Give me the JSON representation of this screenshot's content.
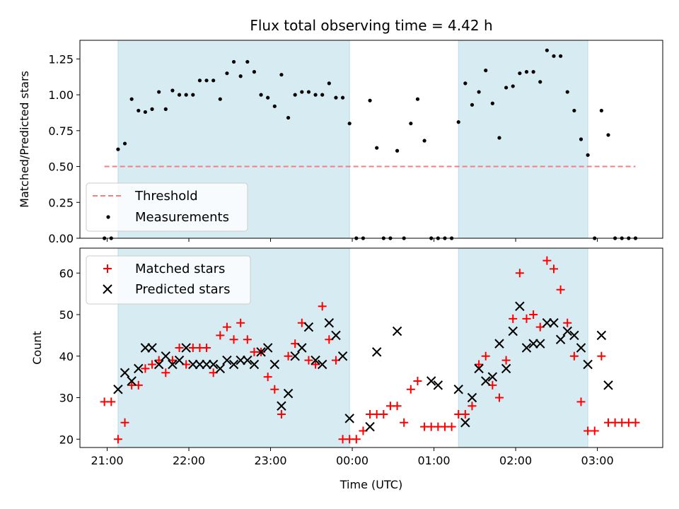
{
  "chart_data": [
    {
      "type": "scatter",
      "title": "Flux total observing time = 4.42 h",
      "ylabel": "Matched/Predicted stars",
      "xlim": [
        "20:40",
        "03:48"
      ],
      "ylim": [
        0,
        1.38
      ],
      "yticks": [
        "0.00",
        "0.25",
        "0.50",
        "0.75",
        "1.00",
        "1.25"
      ],
      "legend_position": "lower-left",
      "shaded_spans": [
        [
          "21:08",
          "23:58"
        ],
        [
          "01:18",
          "02:53"
        ]
      ],
      "shade_color": "#add8e6",
      "threshold": {
        "name": "Threshold",
        "value": 0.5,
        "x_range": [
          "20:58",
          "03:28"
        ],
        "color": "#f08080"
      },
      "series": [
        {
          "name": "Measurements",
          "color": "#000000",
          "x": [
            "20:58",
            "21:03",
            "21:08",
            "21:13",
            "21:18",
            "21:23",
            "21:28",
            "21:33",
            "21:38",
            "21:43",
            "21:48",
            "21:53",
            "21:58",
            "22:03",
            "22:08",
            "22:13",
            "22:18",
            "22:23",
            "22:28",
            "22:33",
            "22:38",
            "22:43",
            "22:48",
            "22:53",
            "22:58",
            "23:03",
            "23:08",
            "23:13",
            "23:18",
            "23:23",
            "23:28",
            "23:33",
            "23:38",
            "23:43",
            "23:48",
            "23:53",
            "23:58",
            "00:03",
            "00:08",
            "00:13",
            "00:18",
            "00:23",
            "00:28",
            "00:33",
            "00:38",
            "00:43",
            "00:48",
            "00:53",
            "00:58",
            "01:03",
            "01:08",
            "01:13",
            "01:18",
            "01:23",
            "01:28",
            "01:33",
            "01:38",
            "01:43",
            "01:48",
            "01:53",
            "01:58",
            "02:03",
            "02:08",
            "02:13",
            "02:18",
            "02:23",
            "02:28",
            "02:33",
            "02:38",
            "02:43",
            "02:48",
            "02:53",
            "02:58",
            "03:03",
            "03:08",
            "03:13",
            "03:18",
            "03:23",
            "03:28"
          ],
          "y": [
            0,
            0,
            0.62,
            0.66,
            0.97,
            0.89,
            0.88,
            0.9,
            1.02,
            0.9,
            1.03,
            1.0,
            1.0,
            1.0,
            1.1,
            1.1,
            1.1,
            0.97,
            1.15,
            1.23,
            1.13,
            1.23,
            1.16,
            1.0,
            0.98,
            0.92,
            1.14,
            0.84,
            1.0,
            1.02,
            1.02,
            1.0,
            1.0,
            1.08,
            0.98,
            0.98,
            0.8,
            0,
            0,
            0.96,
            0.63,
            0,
            0,
            0.61,
            0,
            0.8,
            0.97,
            0.68,
            0,
            0,
            0,
            0,
            0.81,
            1.08,
            0.93,
            1.02,
            1.17,
            0.94,
            0.7,
            1.05,
            1.06,
            1.15,
            1.16,
            1.16,
            1.09,
            1.31,
            1.27,
            1.27,
            1.02,
            0.89,
            0.69,
            0.58,
            0,
            0.89,
            0.72,
            0,
            0,
            0,
            0
          ]
        }
      ]
    },
    {
      "type": "scatter",
      "xlabel": "Time (UTC)",
      "ylabel": "Count",
      "xlim": [
        "20:40",
        "03:48"
      ],
      "ylim": [
        18,
        66
      ],
      "yticks": [
        "20",
        "30",
        "40",
        "50",
        "60"
      ],
      "xticks": [
        "21:00",
        "22:00",
        "23:00",
        "00:00",
        "01:00",
        "02:00",
        "03:00"
      ],
      "legend_position": "upper-left",
      "shaded_spans": [
        [
          "21:08",
          "23:58"
        ],
        [
          "01:18",
          "02:53"
        ]
      ],
      "series": [
        {
          "name": "Matched stars",
          "color": "#ff0000",
          "marker": "plus",
          "x": [
            "20:58",
            "21:03",
            "21:08",
            "21:13",
            "21:18",
            "21:23",
            "21:28",
            "21:33",
            "21:38",
            "21:43",
            "21:48",
            "21:53",
            "21:58",
            "22:03",
            "22:08",
            "22:13",
            "22:18",
            "22:23",
            "22:28",
            "22:33",
            "22:38",
            "22:43",
            "22:48",
            "22:53",
            "22:58",
            "23:03",
            "23:08",
            "23:13",
            "23:18",
            "23:23",
            "23:28",
            "23:33",
            "23:38",
            "23:43",
            "23:48",
            "23:53",
            "23:58",
            "00:03",
            "00:08",
            "00:13",
            "00:18",
            "00:23",
            "00:28",
            "00:33",
            "00:38",
            "00:43",
            "00:48",
            "00:53",
            "00:58",
            "01:03",
            "01:08",
            "01:13",
            "01:18",
            "01:23",
            "01:28",
            "01:33",
            "01:38",
            "01:43",
            "01:48",
            "01:53",
            "01:58",
            "02:03",
            "02:08",
            "02:13",
            "02:18",
            "02:23",
            "02:28",
            "02:33",
            "02:38",
            "02:43",
            "02:48",
            "02:53",
            "02:58",
            "03:03",
            "03:08",
            "03:13",
            "03:18",
            "03:23",
            "03:28"
          ],
          "y": [
            29,
            29,
            20,
            24,
            33,
            33,
            37,
            38,
            39,
            36,
            39,
            42,
            38,
            42,
            42,
            42,
            36,
            45,
            47,
            44,
            48,
            44,
            41,
            41,
            35,
            32,
            26,
            40,
            43,
            48,
            39,
            38,
            52,
            44,
            39,
            20,
            20,
            20,
            22,
            26,
            26,
            26,
            28,
            28,
            24,
            32,
            34,
            23,
            23,
            23,
            23,
            23,
            26,
            26,
            28,
            38,
            40,
            33,
            30,
            39,
            49,
            60,
            49,
            50,
            47,
            63,
            61,
            56,
            48,
            40,
            29,
            22,
            22,
            40,
            24,
            24,
            24,
            24,
            24
          ]
        },
        {
          "name": "Predicted stars",
          "color": "#000000",
          "marker": "x",
          "x": [
            "21:08",
            "21:13",
            "21:18",
            "21:23",
            "21:28",
            "21:33",
            "21:38",
            "21:43",
            "21:48",
            "21:53",
            "21:58",
            "22:03",
            "22:08",
            "22:13",
            "22:18",
            "22:23",
            "22:28",
            "22:33",
            "22:38",
            "22:43",
            "22:48",
            "22:53",
            "22:58",
            "23:03",
            "23:08",
            "23:13",
            "23:18",
            "23:23",
            "23:28",
            "23:33",
            "23:38",
            "23:43",
            "23:48",
            "23:53",
            "23:58",
            "00:13",
            "00:18",
            "00:33",
            "00:58",
            "01:03",
            "01:18",
            "01:23",
            "01:28",
            "01:33",
            "01:38",
            "01:43",
            "01:48",
            "01:53",
            "01:58",
            "02:03",
            "02:08",
            "02:13",
            "02:18",
            "02:23",
            "02:28",
            "02:33",
            "02:38",
            "02:43",
            "02:48",
            "02:53",
            "03:03",
            "03:08"
          ],
          "y": [
            32,
            36,
            34,
            37,
            42,
            42,
            38,
            40,
            38,
            39,
            42,
            38,
            38,
            38,
            38,
            37,
            39,
            38,
            39,
            39,
            38,
            41,
            42,
            38,
            28,
            31,
            40,
            42,
            47,
            39,
            38,
            48,
            45,
            40,
            25,
            23,
            41,
            46,
            34,
            33,
            32,
            24,
            30,
            37,
            34,
            35,
            43,
            37,
            46,
            52,
            42,
            43,
            43,
            48,
            48,
            44,
            46,
            45,
            42,
            38,
            45,
            33
          ]
        }
      ]
    }
  ]
}
